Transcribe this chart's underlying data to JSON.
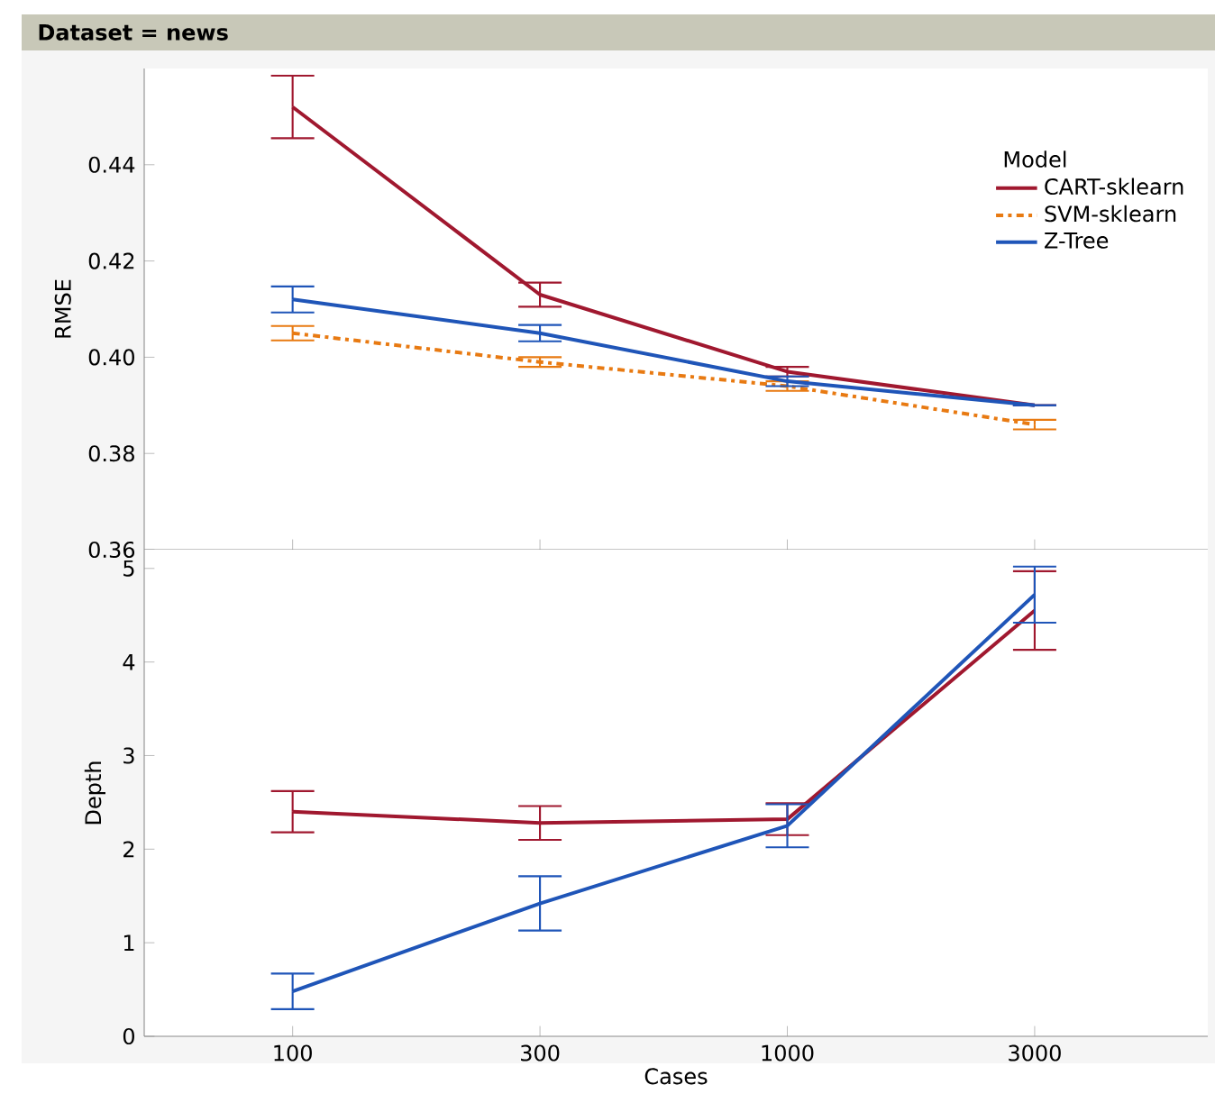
{
  "chart_data": [
    {
      "type": "line",
      "title": "Dataset = news",
      "ylabel": "RMSE",
      "legend_title": "Model",
      "legend": "top right",
      "tick_labels": "y",
      "categories": [
        "100",
        "300",
        "1000",
        "3000"
      ],
      "ylim": [
        0.36,
        0.46
      ],
      "yticks": [
        0.36,
        0.38,
        {
          "value": 0.4,
          "label": "0.40"
        },
        0.42,
        0.44
      ],
      "series": [
        {
          "name": "CART-sklearn",
          "color": "#a0182f",
          "line_style": "solid",
          "values": [
            0.452,
            0.413,
            0.397,
            0.39
          ],
          "errors": [
            0.0065,
            0.0025,
            0.001,
            null
          ]
        },
        {
          "name": "SVM-sklearn",
          "color": "#e87a12",
          "line_style": "dashed",
          "values": [
            0.405,
            0.399,
            0.394,
            0.386
          ],
          "errors": [
            0.0015,
            0.001,
            0.001,
            0.001
          ]
        },
        {
          "name": "Z-Tree",
          "color": "#1f55b8",
          "line_style": "solid",
          "values": [
            0.412,
            0.405,
            0.395,
            0.39
          ],
          "errors": [
            0.0027,
            0.0017,
            0.001,
            null
          ]
        }
      ]
    },
    {
      "type": "line",
      "ylabel": "Depth",
      "xlabel": "Cases",
      "categories": [
        "100",
        "300",
        "1000",
        "3000"
      ],
      "ylim": [
        0,
        5.2
      ],
      "yticks": [
        0,
        1,
        2,
        3,
        4,
        5
      ],
      "series": [
        {
          "color": "#a0182f",
          "line_style": "solid",
          "values": [
            2.4,
            2.28,
            2.32,
            4.55
          ],
          "errors": [
            0.22,
            0.18,
            0.17,
            0.42
          ]
        },
        {
          "color": "#1f55b8",
          "line_style": "solid",
          "values": [
            0.48,
            1.42,
            2.25,
            4.72
          ],
          "errors": [
            0.19,
            0.29,
            0.23,
            0.3
          ]
        }
      ]
    }
  ]
}
